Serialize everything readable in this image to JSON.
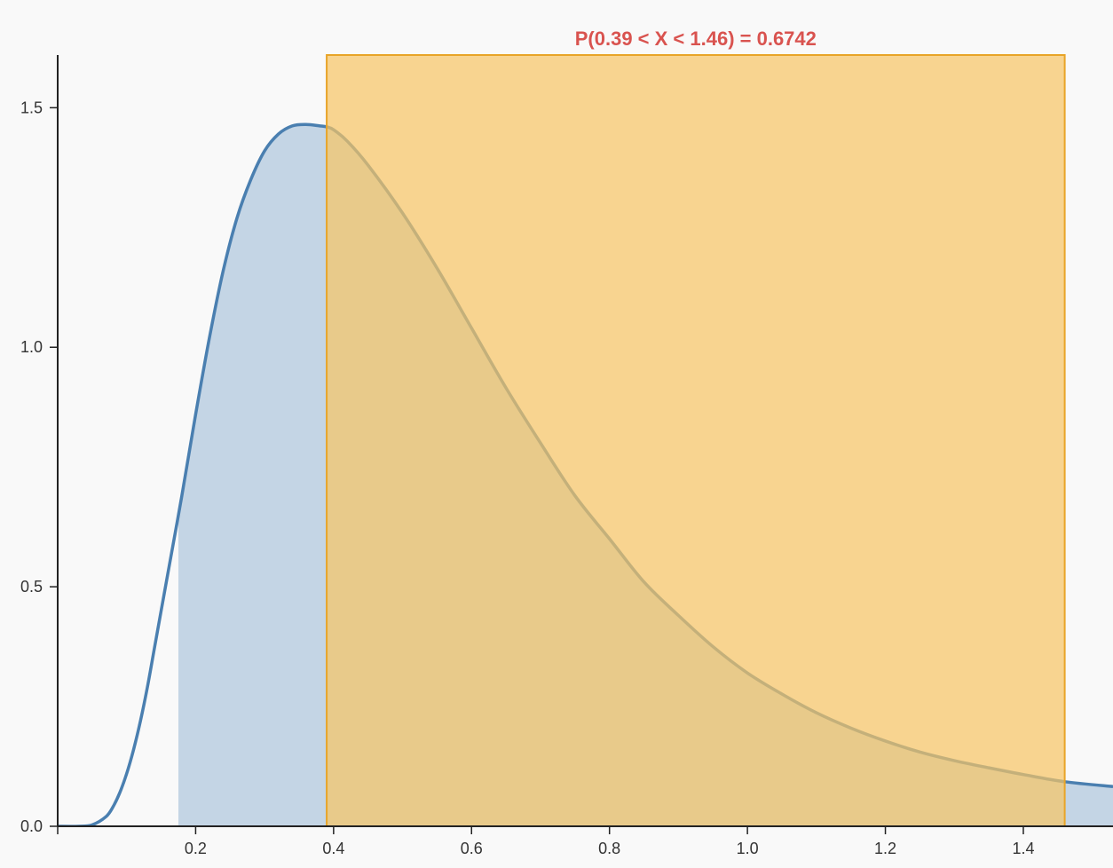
{
  "chart_data": {
    "type": "area",
    "title": "",
    "xlabel": "",
    "ylabel": "",
    "xlim": [
      0.0,
      1.53
    ],
    "ylim": [
      0.0,
      1.61
    ],
    "x_ticks": [
      {
        "value": 0.2,
        "label": "0.2"
      },
      {
        "value": 0.4,
        "label": "0.4"
      },
      {
        "value": 0.6,
        "label": "0.6"
      },
      {
        "value": 0.8,
        "label": "0.8"
      },
      {
        "value": 1.0,
        "label": "1.0"
      },
      {
        "value": 1.2,
        "label": "1.2"
      },
      {
        "value": 1.4,
        "label": "1.4"
      }
    ],
    "y_ticks": [
      {
        "value": 0.0,
        "label": "0.0"
      },
      {
        "value": 0.5,
        "label": "0.5"
      },
      {
        "value": 1.0,
        "label": "1.0"
      },
      {
        "value": 1.5,
        "label": "1.5"
      }
    ],
    "series": [
      {
        "x": [
          0.0,
          0.03,
          0.05,
          0.07,
          0.08,
          0.09,
          0.1,
          0.11,
          0.12,
          0.13,
          0.14,
          0.15,
          0.16,
          0.18,
          0.2,
          0.22,
          0.24,
          0.26,
          0.28,
          0.3,
          0.32,
          0.34,
          0.36,
          0.38,
          0.39,
          0.4,
          0.42,
          0.45,
          0.5,
          0.55,
          0.6,
          0.65,
          0.7,
          0.75,
          0.8,
          0.85,
          0.9,
          0.95,
          1.0,
          1.05,
          1.1,
          1.15,
          1.2,
          1.25,
          1.3,
          1.35,
          1.4,
          1.46,
          1.53
        ],
        "values": [
          0.0,
          0.0,
          0.003,
          0.02,
          0.04,
          0.07,
          0.11,
          0.16,
          0.22,
          0.29,
          0.37,
          0.45,
          0.53,
          0.69,
          0.86,
          1.02,
          1.16,
          1.27,
          1.35,
          1.41,
          1.445,
          1.462,
          1.465,
          1.462,
          1.46,
          1.454,
          1.43,
          1.38,
          1.28,
          1.165,
          1.04,
          0.915,
          0.8,
          0.69,
          0.6,
          0.51,
          0.44,
          0.375,
          0.32,
          0.276,
          0.237,
          0.205,
          0.178,
          0.155,
          0.137,
          0.122,
          0.108,
          0.093,
          0.083
        ]
      }
    ],
    "shaded_region": {
      "x_start": 0.175,
      "x_end": 1.53
    },
    "highlight_interval": {
      "x_start": 0.39,
      "x_end": 1.46,
      "label": "P(0.39 < X < 1.46) = 0.6742"
    },
    "grid": false,
    "legend": "none",
    "colors": {
      "curve": "#4a7fb0",
      "curve_fill": "#c4d5e5",
      "box_fill": "#f8c564",
      "box_stroke": "#e8a428",
      "annotation": "#d9534f",
      "axis": "#222222",
      "background": "#f9f9f9"
    }
  }
}
